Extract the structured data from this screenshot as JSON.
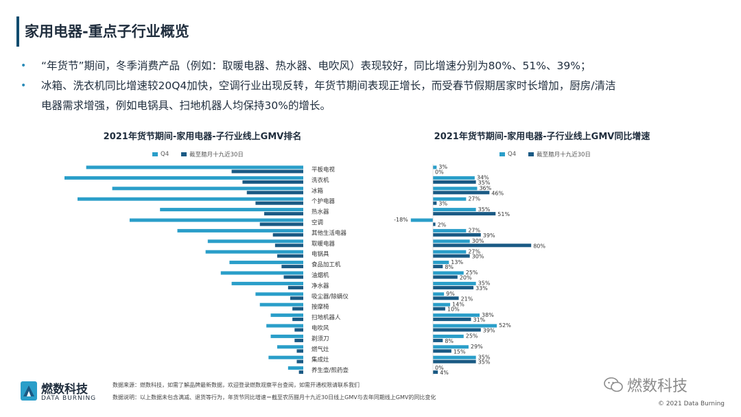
{
  "page_title": "家用电器-重点子行业概览",
  "bullets": [
    "“年货节”期间，冬季消费产品（例如：取暖电器、热水器、电吹风）表现较好，同比增速分别为80%、51%、39%；",
    "冰箱、洗衣机同比增速较20Q4加快，空调行业出现反转，年货节期间表现正增长，而受春节假期居家时长增加，厨房/清洁",
    "电器需求增强，例如电锅具、扫地机器人均保持30%的增长。"
  ],
  "colors": {
    "q4": "#2a9ec9",
    "cny": "#1a5a84"
  },
  "chart_data": [
    {
      "type": "bar",
      "orientation": "horizontal",
      "title": "2021年货节期间-家用电器-子行业线上GMV排名",
      "legend": [
        "Q4",
        "截至腊月十九近30日"
      ],
      "categories": [
        "平板电视",
        "洗衣机",
        "冰箱",
        "个护电器",
        "热水器",
        "空调",
        "其他生活电器",
        "取暖电器",
        "电锅具",
        "食品加工机",
        "油烟机",
        "净水器",
        "吸尘器/除螨仪",
        "按摩椅",
        "扫地机器人",
        "电吹风",
        "剃须刀",
        "燃气灶",
        "集成灶",
        "养生壶/煎药壶"
      ],
      "series": [
        {
          "name": "Q4",
          "values": [
            100,
            110,
            88,
            104,
            66,
            80,
            58,
            44,
            45,
            34,
            38,
            33,
            22,
            20,
            15,
            17,
            15,
            12,
            16,
            7
          ]
        },
        {
          "name": "截至腊月十九近30日",
          "values": [
            33,
            28,
            26,
            22,
            18,
            20,
            14,
            13,
            12,
            10,
            9,
            7,
            6,
            5,
            5,
            4,
            4,
            3,
            3,
            2
          ]
        }
      ]
    },
    {
      "type": "bar",
      "orientation": "horizontal",
      "title": "2021年货节期间-家用电器-子行业线上GMV同比增速",
      "legend": [
        "Q4",
        "截至腊月十九近30日"
      ],
      "categories": [
        "平板电视",
        "洗衣机",
        "冰箱",
        "个护电器",
        "热水器",
        "空调",
        "其他生活电器",
        "取暖电器",
        "电锅具",
        "食品加工机",
        "油烟机",
        "净水器",
        "吸尘器/除螨仪",
        "按摩椅",
        "扫地机器人",
        "电吹风",
        "剃须刀",
        "燃气灶",
        "集成灶",
        "养生壶/煎药壶"
      ],
      "series": [
        {
          "name": "Q4",
          "values": [
            3,
            34,
            36,
            27,
            35,
            -18,
            27,
            30,
            27,
            13,
            25,
            35,
            9,
            14,
            38,
            52,
            25,
            29,
            35,
            0
          ]
        },
        {
          "name": "截至腊月十九近30日",
          "values": [
            0,
            35,
            46,
            3,
            51,
            2,
            39,
            80,
            30,
            8,
            20,
            33,
            21,
            10,
            31,
            39,
            8,
            15,
            35,
            4
          ]
        }
      ],
      "value_suffix": "%",
      "highlight_index": 7
    }
  ],
  "footer": {
    "source": "数据来源：燃数科技，如需了解品牌最新数据，欢迎登录燃数观察平台查阅，如需开通权限请联系我们",
    "note": "数据说明：以上数据未包含满减、退货等行为，年货节同比增速＝截至农历腊月十九近30日线上GMV与去年同期线上GMV的同比变化"
  },
  "logo": {
    "name": "燃数科技",
    "sub": "DATA BURNING"
  },
  "wechat_name": "燃数科技",
  "copyright": "© 2021 Data Burning"
}
